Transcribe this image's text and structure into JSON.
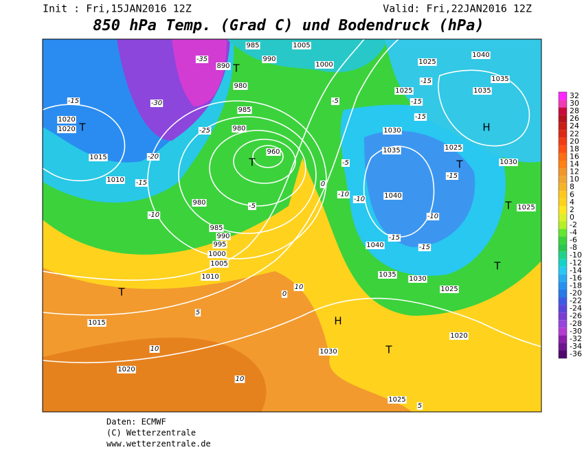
{
  "header": {
    "init": "Init : Fri,15JAN2016 12Z",
    "valid": "Valid: Fri,22JAN2016 12Z",
    "title": "850 hPa Temp. (Grad C) und Bodendruck (hPa)"
  },
  "legend": {
    "ticks": [
      32,
      30,
      28,
      26,
      24,
      22,
      20,
      18,
      16,
      14,
      12,
      10,
      8,
      6,
      4,
      2,
      0,
      -2,
      -4,
      -6,
      -8,
      -10,
      -12,
      -14,
      -16,
      -18,
      -20,
      -22,
      -24,
      -26,
      -28,
      -30,
      -32,
      -34,
      -36
    ],
    "colors": [
      "#ff28ff",
      "#f03cb4",
      "#c80a3c",
      "#b4141e",
      "#c81e14",
      "#dc2814",
      "#f03c14",
      "#ff5014",
      "#ff6e14",
      "#ff8214",
      "#f09628",
      "#f0a530",
      "#f5b428",
      "#ffc81e",
      "#ffd21e",
      "#ffe61e",
      "#dcf028",
      "#b4f028",
      "#64e632",
      "#3cd23c",
      "#28c850",
      "#1ed28c",
      "#14d2c8",
      "#28c8f0",
      "#2aaaf0",
      "#2891f0",
      "#2878e6",
      "#3c5ae6",
      "#5a46dc",
      "#7a3cd2",
      "#9646dc",
      "#b43cd2",
      "#8c1eaa",
      "#6e1490",
      "#50086e"
    ]
  },
  "map": {
    "isobar_labels": [
      "1040",
      "1035",
      "1035",
      "1025",
      "1030",
      "1025",
      "1020",
      "1025",
      "1030",
      "1020",
      "1015",
      "1010",
      "1005",
      "1000",
      "995",
      "990",
      "985",
      "980",
      "960",
      "1020",
      "1020",
      "1015",
      "1010",
      "1040",
      "1040",
      "1035",
      "1030",
      "1025",
      "1030",
      "1035",
      "1025",
      "990",
      "985",
      "1005",
      "1000",
      "980",
      "985",
      "980",
      "1025",
      "890"
    ],
    "temperature_labels": [
      "-15",
      "-30",
      "-25",
      "-20",
      "-15",
      "-10",
      "-5",
      "-35",
      "-5",
      "-15",
      "-15",
      "-15",
      "-15",
      "-10",
      "-15",
      "-15",
      "-5",
      "0",
      "0",
      "10",
      "5",
      "10",
      "10",
      "5",
      "-10",
      "-10"
    ],
    "centers": [
      "T",
      "T",
      "T",
      "T",
      "H",
      "H",
      "T",
      "T",
      "T",
      "T"
    ]
  },
  "footer": {
    "source": "Daten: ECMWF",
    "copyright": "(C) Wetterzentrale",
    "url": "www.wetterzentrale.de"
  }
}
